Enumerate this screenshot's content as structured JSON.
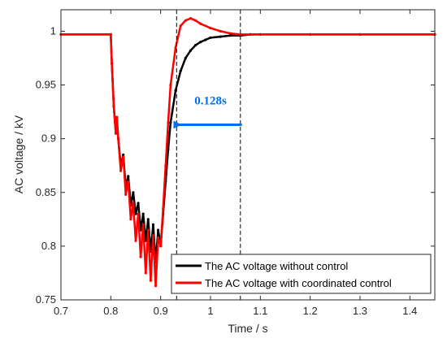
{
  "chart_data": {
    "type": "line",
    "title": "",
    "xlabel": "Time / s",
    "ylabel": "AC voltage / kV",
    "xlim": [
      0.7,
      1.45
    ],
    "ylim": [
      0.75,
      1.02
    ],
    "xticks": [
      0.7,
      0.8,
      0.9,
      1.0,
      1.1,
      1.2,
      1.3,
      1.4
    ],
    "xtick_labels": [
      "0.7",
      "0.8",
      "0.9",
      "1",
      "1.1",
      "1.2",
      "1.3",
      "1.4"
    ],
    "yticks": [
      0.75,
      0.8,
      0.85,
      0.9,
      0.95,
      1.0
    ],
    "ytick_labels": [
      "0.75",
      "0.8",
      "0.85",
      "0.9",
      "0.95",
      "1"
    ],
    "grid": false,
    "legend": {
      "placement": "bottom-right"
    },
    "series": [
      {
        "name": "The AC voltage without control",
        "color": "#000000",
        "x": [
          0.7,
          0.8,
          0.802,
          0.806,
          0.81,
          0.812,
          0.815,
          0.82,
          0.825,
          0.83,
          0.835,
          0.84,
          0.845,
          0.85,
          0.855,
          0.86,
          0.865,
          0.87,
          0.875,
          0.88,
          0.885,
          0.89,
          0.895,
          0.9,
          0.905,
          0.91,
          0.915,
          0.92,
          0.93,
          0.94,
          0.95,
          0.96,
          0.97,
          0.98,
          0.99,
          1.0,
          1.02,
          1.04,
          1.06,
          1.08,
          1.1,
          1.2,
          1.3,
          1.45
        ],
        "y": [
          0.997,
          0.997,
          0.97,
          0.93,
          0.905,
          0.92,
          0.9,
          0.875,
          0.885,
          0.855,
          0.865,
          0.838,
          0.85,
          0.83,
          0.84,
          0.815,
          0.83,
          0.805,
          0.825,
          0.795,
          0.82,
          0.785,
          0.815,
          0.8,
          0.83,
          0.86,
          0.89,
          0.915,
          0.945,
          0.963,
          0.975,
          0.982,
          0.987,
          0.99,
          0.992,
          0.994,
          0.995,
          0.996,
          0.996,
          0.997,
          0.997,
          0.997,
          0.997,
          0.997
        ]
      },
      {
        "name": "The AC voltage with coordinated control",
        "color": "#ff0000",
        "x": [
          0.7,
          0.8,
          0.802,
          0.806,
          0.81,
          0.812,
          0.815,
          0.82,
          0.825,
          0.83,
          0.835,
          0.84,
          0.845,
          0.85,
          0.855,
          0.86,
          0.865,
          0.87,
          0.875,
          0.88,
          0.885,
          0.89,
          0.895,
          0.9,
          0.905,
          0.91,
          0.915,
          0.92,
          0.93,
          0.94,
          0.95,
          0.96,
          0.97,
          0.98,
          1.0,
          1.02,
          1.04,
          1.06,
          1.08,
          1.1,
          1.2,
          1.3,
          1.45
        ],
        "y": [
          0.997,
          0.997,
          0.97,
          0.93,
          0.905,
          0.92,
          0.9,
          0.87,
          0.883,
          0.848,
          0.86,
          0.825,
          0.84,
          0.805,
          0.83,
          0.79,
          0.82,
          0.775,
          0.815,
          0.768,
          0.81,
          0.763,
          0.808,
          0.8,
          0.835,
          0.875,
          0.915,
          0.95,
          0.985,
          1.005,
          1.01,
          1.012,
          1.01,
          1.007,
          1.003,
          1.0,
          0.998,
          0.997,
          0.997,
          0.997,
          0.997,
          0.997,
          0.997
        ]
      }
    ],
    "annotations": {
      "vlines_x": [
        0.932,
        1.06
      ],
      "arrow": {
        "x_from": 1.063,
        "x_to": 0.937,
        "y": 0.913,
        "color": "#0070f0"
      },
      "label": {
        "text": "0.128s",
        "x": 1.0,
        "y": 0.932,
        "color": "#0070f0"
      }
    }
  }
}
